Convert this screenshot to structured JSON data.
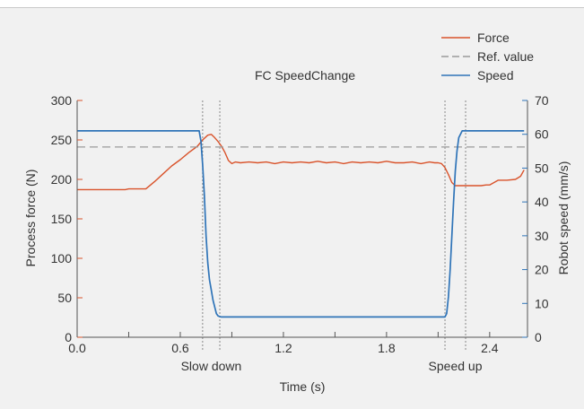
{
  "chart_data": {
    "type": "line",
    "title": "FC SpeedChange",
    "xlabel": "Time (s)",
    "ylabel_left": "Process force (N)",
    "ylabel_right": "Robot speed (mm/s)",
    "xlim": [
      0.0,
      2.62
    ],
    "ylim_left": [
      0,
      300
    ],
    "ylim_right": [
      0,
      70
    ],
    "x_ticks": [
      "0.0",
      "0.6",
      "1.2",
      "1.8",
      "2.4"
    ],
    "x_tick_values": [
      0.0,
      0.6,
      1.2,
      1.8,
      2.4
    ],
    "x_minor_ticks": [
      0.3,
      0.9,
      1.5,
      2.1
    ],
    "y_left_ticks": [
      "0",
      "50",
      "100",
      "150",
      "200",
      "250",
      "300"
    ],
    "y_left_tick_values": [
      0,
      50,
      100,
      150,
      200,
      250,
      300
    ],
    "y_right_ticks": [
      "0",
      "10",
      "20",
      "30",
      "40",
      "50",
      "60",
      "70"
    ],
    "y_right_tick_values": [
      0,
      10,
      20,
      30,
      40,
      50,
      60,
      70
    ],
    "legend_position": "top-right",
    "colors": {
      "force": "#d9532b",
      "speed": "#2f74b8",
      "ref": "#9a9a9a",
      "axis": "#555555",
      "vline": "#888888"
    },
    "series": [
      {
        "name": "Force",
        "axis": "left",
        "x": [
          0.0,
          0.1,
          0.2,
          0.28,
          0.3,
          0.36,
          0.4,
          0.45,
          0.5,
          0.55,
          0.6,
          0.65,
          0.7,
          0.73,
          0.76,
          0.78,
          0.8,
          0.82,
          0.84,
          0.86,
          0.88,
          0.9,
          0.92,
          0.95,
          1.0,
          1.05,
          1.1,
          1.15,
          1.2,
          1.25,
          1.3,
          1.35,
          1.4,
          1.45,
          1.5,
          1.55,
          1.6,
          1.65,
          1.7,
          1.75,
          1.8,
          1.85,
          1.9,
          1.95,
          2.0,
          2.05,
          2.08,
          2.1,
          2.12,
          2.14,
          2.16,
          2.18,
          2.2,
          2.25,
          2.3,
          2.35,
          2.38,
          2.4,
          2.45,
          2.5,
          2.55,
          2.58,
          2.6
        ],
        "values": [
          187,
          187,
          187,
          187,
          188,
          188,
          188,
          197,
          207,
          217,
          225,
          234,
          242,
          250,
          256,
          257,
          253,
          248,
          242,
          234,
          224,
          220,
          222,
          221,
          222,
          221,
          222,
          220,
          222,
          221,
          222,
          221,
          223,
          221,
          222,
          220,
          222,
          221,
          222,
          221,
          223,
          221,
          221,
          222,
          220,
          222,
          221,
          221,
          220,
          215,
          206,
          196,
          192,
          192,
          192,
          192,
          193,
          193,
          199,
          199,
          200,
          204,
          212
        ]
      },
      {
        "name": "Ref. value",
        "axis": "left",
        "style": "dashed",
        "x": [
          0.0,
          2.62
        ],
        "values": [
          241,
          241
        ]
      },
      {
        "name": "Speed",
        "axis": "right",
        "x": [
          0.0,
          0.71,
          0.72,
          0.73,
          0.74,
          0.75,
          0.76,
          0.77,
          0.78,
          0.79,
          0.8,
          0.81,
          0.82,
          0.83,
          0.84,
          2.14,
          2.15,
          2.16,
          2.17,
          2.18,
          2.19,
          2.2,
          2.21,
          2.22,
          2.24,
          2.6
        ],
        "values": [
          61,
          61,
          58,
          51,
          42,
          30,
          22,
          17,
          14,
          11,
          9,
          7,
          6.3,
          6.1,
          6,
          6,
          7,
          12,
          20,
          30,
          40,
          49,
          55,
          59,
          61,
          61
        ]
      }
    ],
    "markers": [
      {
        "x": 0.73,
        "label": ""
      },
      {
        "x": 0.83,
        "label": ""
      },
      {
        "x": 2.14,
        "label": ""
      },
      {
        "x": 2.26,
        "label": ""
      }
    ],
    "annotations": [
      {
        "label": "Slow down",
        "x": 0.78
      },
      {
        "label": "Speed up",
        "x": 2.2
      }
    ]
  }
}
